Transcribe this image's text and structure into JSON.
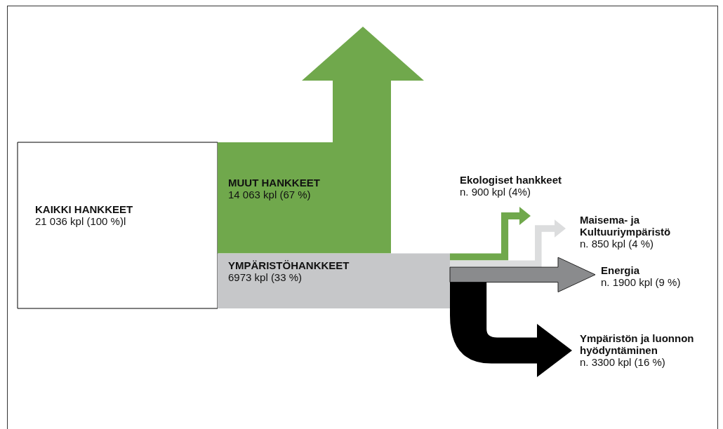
{
  "chart_data": {
    "type": "other",
    "categories": [
      "KAIKKI HANKKEET",
      "MUUT HANKKEET",
      "YMPÄRISTÖHANKKEET",
      "Ekologiset hankkeet",
      "Maisema- ja\nKultuuriympäristö",
      "Energia",
      "Ympäristön ja luonnon\nhyödyntäminen"
    ],
    "values": [
      21036,
      14063,
      6973,
      900,
      850,
      1900,
      3300
    ],
    "value_labels": [
      "21 036 kpl (100 %)l",
      "14 063 kpl (67 %)",
      "6973 kpl (33 %)",
      "n. 900 kpl (4%)",
      "n. 850 kpl (4 %)",
      "n. 1900 kpl (9 %)",
      "n. 3300 kpl (16 %)"
    ],
    "colors": [
      "#ffffff",
      "#70a84c",
      "#c6c7c9",
      "#70a84c",
      "#dcddde",
      "#8a8b8d",
      "#000000"
    ]
  }
}
